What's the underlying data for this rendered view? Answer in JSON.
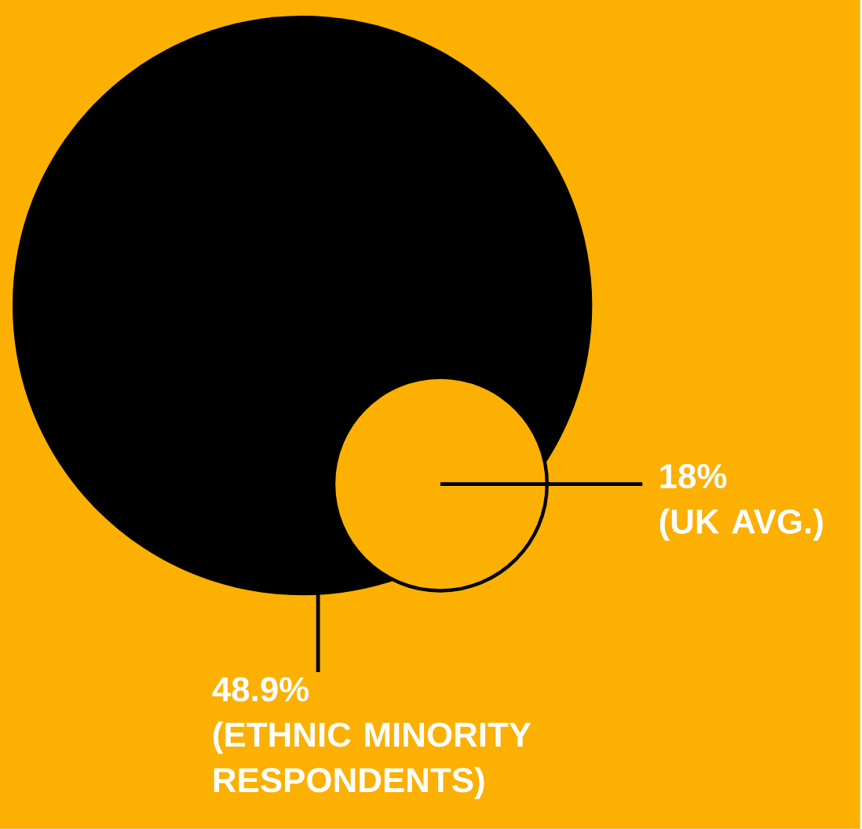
{
  "chart_data": {
    "type": "other",
    "categories": [
      "(ETHNIC MINORITY RESPONDENTS)",
      "(UK AVG.)"
    ],
    "values": [
      48.9,
      18
    ],
    "value_labels": [
      "48.9%",
      "18%"
    ],
    "colors": [
      "#000000",
      "#fbb002"
    ]
  }
}
